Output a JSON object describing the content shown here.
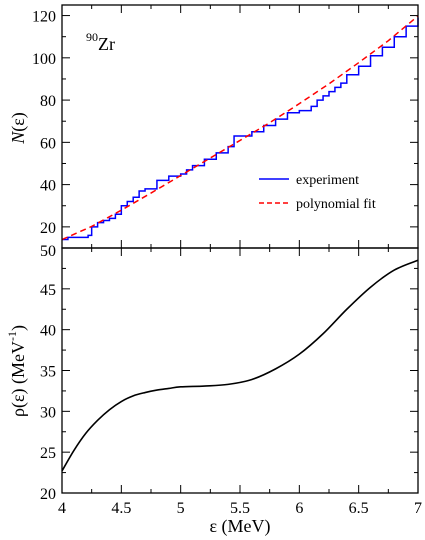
{
  "chart_data": [
    {
      "type": "line",
      "panel": "top",
      "annotation": {
        "superscript": "90",
        "text": "Zr"
      },
      "ylabel": {
        "main": "N",
        "arg": "(ε)"
      },
      "xlim": [
        4,
        7
      ],
      "ylim": [
        10,
        125
      ],
      "yticks": [
        20,
        40,
        60,
        80,
        100,
        120
      ],
      "ytick_labels": [
        "20",
        "40",
        "60",
        "80",
        "100",
        "120"
      ],
      "legend": {
        "position": "right-middle"
      },
      "series": [
        {
          "name": "experiment",
          "color": "#0000ff",
          "style": "staircase",
          "x": [
            4.0,
            4.05,
            4.1,
            4.15,
            4.22,
            4.25,
            4.3,
            4.35,
            4.4,
            4.45,
            4.5,
            4.55,
            4.6,
            4.65,
            4.7,
            4.8,
            4.9,
            5.0,
            5.05,
            5.1,
            5.2,
            5.3,
            5.4,
            5.45,
            5.5,
            5.6,
            5.7,
            5.8,
            5.9,
            6.0,
            6.1,
            6.15,
            6.2,
            6.25,
            6.3,
            6.35,
            6.4,
            6.5,
            6.6,
            6.7,
            6.8,
            6.9,
            7.0
          ],
          "y": [
            14,
            15,
            15,
            15,
            16,
            20,
            22,
            23,
            24,
            26,
            30,
            32,
            34,
            37,
            38,
            42,
            44,
            45,
            47,
            49,
            52,
            55,
            58,
            63,
            63,
            65,
            68,
            71,
            74,
            75,
            77,
            80,
            82,
            84,
            86,
            88,
            92,
            96,
            101,
            105,
            110,
            115,
            119
          ]
        },
        {
          "name": "polynomial fit",
          "color": "#ff0000",
          "style": "dashed",
          "x": [
            4.0,
            4.25,
            4.5,
            4.75,
            5.0,
            5.25,
            5.5,
            5.75,
            6.0,
            6.25,
            6.5,
            6.75,
            7.0
          ],
          "y": [
            14.0,
            20.2,
            27.9,
            36.0,
            44.3,
            52.6,
            60.9,
            69.3,
            78.3,
            87.7,
            97.7,
            108.1,
            119.8
          ]
        }
      ]
    },
    {
      "type": "line",
      "panel": "bottom",
      "xlabel": "ε (MeV)",
      "ylabel": {
        "main": "ρ(ε) (MeV",
        "sup": "-1",
        "close": ")"
      },
      "xlim": [
        4,
        7
      ],
      "ylim": [
        20,
        50
      ],
      "xticks": [
        4,
        4.5,
        5,
        5.5,
        6,
        6.5,
        7
      ],
      "xtick_labels": [
        "4",
        "4.5",
        "5",
        "5.5",
        "6",
        "6.5",
        "7"
      ],
      "yticks": [
        20,
        25,
        30,
        35,
        40,
        45,
        50
      ],
      "ytick_labels": [
        "20",
        "25",
        "30",
        "35",
        "40",
        "45",
        "50"
      ],
      "series": [
        {
          "color": "#000000",
          "style": "solid",
          "x": [
            4.0,
            4.1,
            4.2,
            4.3,
            4.4,
            4.5,
            4.6,
            4.7,
            4.8,
            4.9,
            5.0,
            5.2,
            5.4,
            5.6,
            5.8,
            6.0,
            6.2,
            6.4,
            6.6,
            6.8,
            7.0
          ],
          "y": [
            22.7,
            25.2,
            27.3,
            28.9,
            30.2,
            31.2,
            31.9,
            32.3,
            32.6,
            32.8,
            33.0,
            33.1,
            33.3,
            33.9,
            35.2,
            37.0,
            39.5,
            42.5,
            45.2,
            47.3,
            48.5
          ]
        }
      ]
    }
  ]
}
